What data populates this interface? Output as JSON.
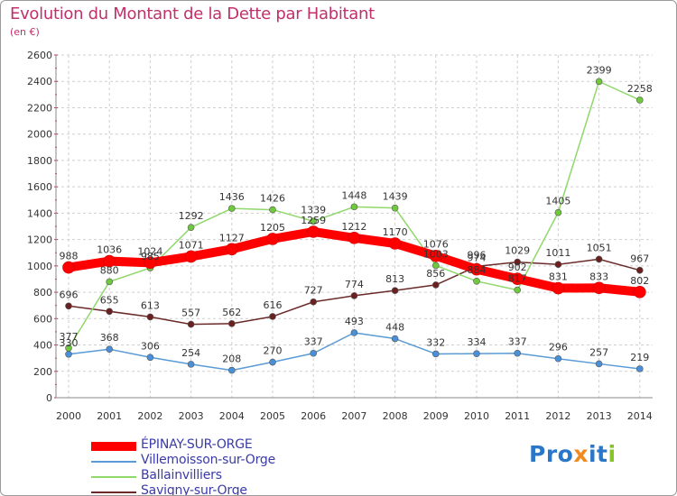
{
  "title": "Evolution du Montant de la Dette par Habitant",
  "unit": "(en €)",
  "logo": [
    "Pro",
    "x",
    "i",
    "t",
    "i"
  ],
  "chart_data": {
    "type": "line",
    "title": "Evolution du Montant de la Dette par Habitant",
    "ylabel": "(en €)",
    "xlabel": "",
    "ylim": [
      0,
      2600
    ],
    "yticks": [
      0,
      200,
      400,
      600,
      800,
      1000,
      1200,
      1400,
      1600,
      1800,
      2000,
      2200,
      2400,
      2600
    ],
    "x": [
      "2000",
      "2001",
      "2002",
      "2003",
      "2004",
      "2005",
      "2006",
      "2007",
      "2008",
      "2009",
      "2010",
      "2011",
      "2012",
      "2013",
      "2014"
    ],
    "grid": true,
    "legend": "bottom-left",
    "series": [
      {
        "name": "ÉPINAY-SUR-ORGE",
        "color": "#ff0000",
        "values": [
          988,
          1036,
          1024,
          1071,
          1127,
          1205,
          1259,
          1212,
          1170,
          1076,
          974,
          902,
          831,
          833,
          802
        ]
      },
      {
        "name": "Villemoisson-sur-Orge",
        "color": "#5a9bd5",
        "values": [
          330,
          368,
          306,
          254,
          208,
          270,
          337,
          493,
          448,
          332,
          334,
          337,
          296,
          257,
          219
        ]
      },
      {
        "name": "Ballainvilliers",
        "color": "#8fd86a",
        "values": [
          377,
          880,
          985,
          1292,
          1436,
          1426,
          1339,
          1448,
          1439,
          1003,
          884,
          817,
          1405,
          2399,
          2258
        ]
      },
      {
        "name": "Savigny-sur-Orge",
        "color": "#6b2a2a",
        "values": [
          696,
          655,
          613,
          557,
          562,
          616,
          727,
          774,
          813,
          856,
          996,
          1029,
          1011,
          1051,
          967
        ]
      }
    ]
  }
}
